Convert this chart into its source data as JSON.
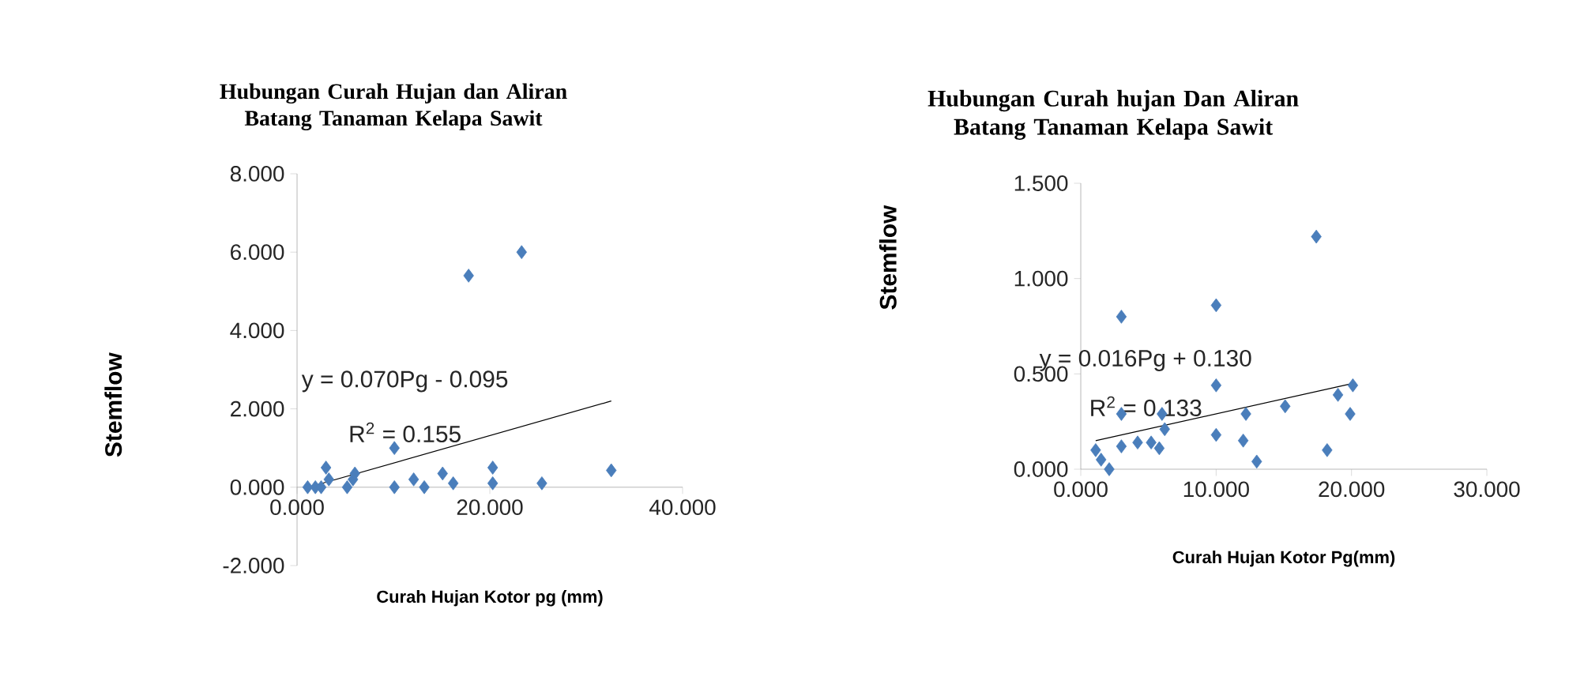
{
  "chart_data": [
    {
      "type": "scatter",
      "title": "Hubungan Curah Hujan dan Aliran Batang Tanaman Kelapa Sawit",
      "xlabel": "Curah Hujan Kotor pg (mm)",
      "ylabel": "Stemflow",
      "annotations": [
        "y = 0.070Pg - 0.095",
        "R$^{2}$ = 0.155"
      ],
      "xlim": [
        0,
        40
      ],
      "ylim": [
        -2,
        8
      ],
      "xticks": [
        {
          "value": 0,
          "label": "0.000"
        },
        {
          "value": 20,
          "label": "20.000"
        },
        {
          "value": 40,
          "label": "40.000"
        }
      ],
      "yticks": [
        {
          "value": -2,
          "label": "-2.000"
        },
        {
          "value": 0,
          "label": "0.000"
        },
        {
          "value": 2,
          "label": "2.000"
        },
        {
          "value": 4,
          "label": "4.000"
        },
        {
          "value": 6,
          "label": "6.000"
        },
        {
          "value": 8,
          "label": "8.000"
        }
      ],
      "marker": "diamond",
      "grid": false,
      "series": [
        {
          "color": "#4a7ebb",
          "x": [
            1.1,
            1.9,
            2.5,
            3.0,
            3.3,
            5.2,
            5.8,
            6.0,
            10.1,
            10.1,
            12.1,
            13.2,
            15.1,
            16.2,
            17.8,
            20.3,
            20.3,
            23.3,
            25.4,
            32.6
          ],
          "values": [
            0,
            0,
            0,
            0.5,
            0.2,
            0,
            0.2,
            0.35,
            1.0,
            0,
            0.2,
            0,
            0.35,
            0.1,
            5.4,
            0.5,
            0.1,
            6.0,
            0.1,
            0.43
          ]
        },
        {
          "type": "line",
          "marker": "none",
          "color": "#000000",
          "x": [
            1.2,
            32.6
          ],
          "values": [
            0,
            2.2
          ]
        }
      ]
    },
    {
      "type": "scatter",
      "title": "Hubungan Curah hujan Dan Aliran Batang Tanaman Kelapa Sawit",
      "xlabel": "Curah Hujan Kotor Pg(mm)",
      "ylabel": "Stemflow",
      "annotations": [
        "y = 0.016Pg + 0.130",
        "R$^{2}$ = 0.133"
      ],
      "xlim": [
        0,
        30
      ],
      "ylim": [
        0,
        1.5
      ],
      "xticks": [
        {
          "value": 0,
          "label": "0.000"
        },
        {
          "value": 10,
          "label": "10.000"
        },
        {
          "value": 20,
          "label": "20.000"
        },
        {
          "value": 30,
          "label": "30.000"
        }
      ],
      "yticks": [
        {
          "value": 0,
          "label": "0.000"
        },
        {
          "value": 0.5,
          "label": "0.500"
        },
        {
          "value": 1,
          "label": "1.000"
        },
        {
          "value": 1.5,
          "label": "1.500"
        }
      ],
      "marker": "diamond",
      "grid": false,
      "series": [
        {
          "color": "#4a7ebb",
          "x": [
            1.1,
            1.5,
            2.1,
            3.0,
            3.0,
            3.0,
            4.2,
            5.2,
            5.8,
            6.0,
            6.2,
            10.0,
            10.0,
            10.0,
            12.0,
            12.2,
            13.0,
            15.1,
            17.4,
            18.2,
            19.0,
            20.1,
            19.9
          ],
          "values": [
            0.1,
            0.05,
            0.0,
            0.8,
            0.29,
            0.12,
            0.14,
            0.14,
            0.11,
            0.29,
            0.21,
            0.86,
            0.44,
            0.18,
            0.15,
            0.29,
            0.04,
            0.33,
            1.22,
            0.1,
            0.39,
            0.44,
            0.29
          ]
        },
        {
          "type": "line",
          "marker": "none",
          "color": "#000000",
          "x": [
            1.1,
            20.1
          ],
          "values": [
            0.15,
            0.45
          ]
        }
      ]
    }
  ]
}
